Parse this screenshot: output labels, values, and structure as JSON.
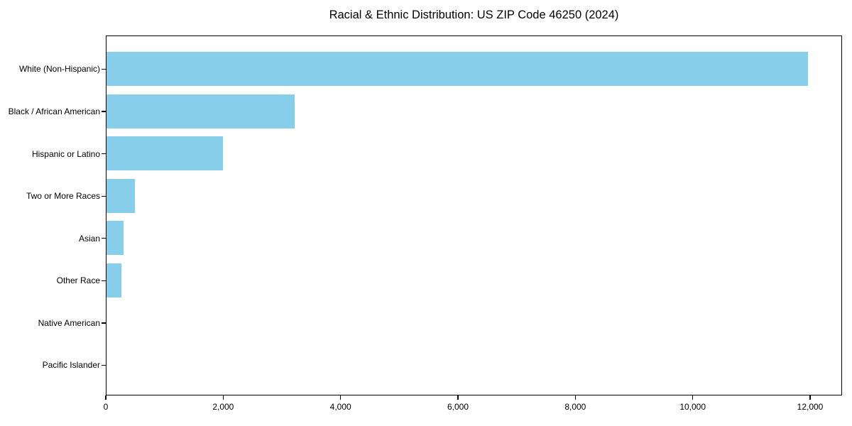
{
  "figure": {
    "background": "#ffffff",
    "frame_color": "#000000",
    "text_color": "#000000"
  },
  "chart_data": {
    "type": "bar",
    "orientation": "horizontal",
    "title": "Racial & Ethnic Distribution: US ZIP Code 46250 (2024)",
    "xlabel": "",
    "ylabel": "",
    "categories": [
      "White (Non-Hispanic)",
      "Black / African American",
      "Hispanic or Latino",
      "Two or More Races",
      "Asian",
      "Other Race",
      "Native American",
      "Pacific Islander"
    ],
    "values": [
      11950,
      3200,
      1980,
      480,
      295,
      255,
      0,
      0
    ],
    "xlim": [
      0,
      12544
    ],
    "xticks": [
      0,
      2000,
      4000,
      6000,
      8000,
      10000,
      12000
    ],
    "bar_color": "#87CEEB",
    "grid": false,
    "legend": null
  }
}
